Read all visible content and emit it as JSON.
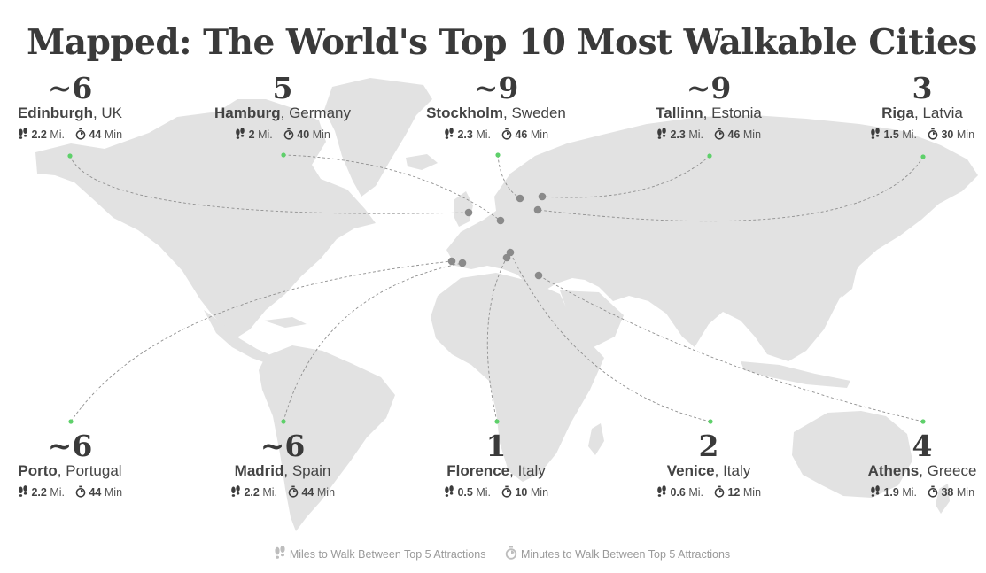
{
  "title": "Mapped: The World's Top 10 Most Walkable Cities",
  "units": {
    "miles": "Mi.",
    "minutes": "Min"
  },
  "colors": {
    "land": "#e2e2e2",
    "dot": "#8a8a8a",
    "marker": "#5ed06a",
    "text": "#3c3c3c",
    "legend": "#9a9a9a"
  },
  "icons": {
    "miles": "footprints-icon",
    "minutes": "stopwatch-icon"
  },
  "cities": [
    {
      "rank": "~6",
      "city": "Edinburgh",
      "country": "UK",
      "miles": "2.2",
      "minutes": "44"
    },
    {
      "rank": "5",
      "city": "Hamburg",
      "country": "Germany",
      "miles": "2",
      "minutes": "40"
    },
    {
      "rank": "~9",
      "city": "Stockholm",
      "country": "Sweden",
      "miles": "2.3",
      "minutes": "46"
    },
    {
      "rank": "~9",
      "city": "Tallinn",
      "country": "Estonia",
      "miles": "2.3",
      "minutes": "46"
    },
    {
      "rank": "3",
      "city": "Riga",
      "country": "Latvia",
      "miles": "1.5",
      "minutes": "30"
    },
    {
      "rank": "~6",
      "city": "Porto",
      "country": "Portugal",
      "miles": "2.2",
      "minutes": "44"
    },
    {
      "rank": "~6",
      "city": "Madrid",
      "country": "Spain",
      "miles": "2.2",
      "minutes": "44"
    },
    {
      "rank": "1",
      "city": "Florence",
      "country": "Italy",
      "miles": "0.5",
      "minutes": "10"
    },
    {
      "rank": "2",
      "city": "Venice",
      "country": "Italy",
      "miles": "0.6",
      "minutes": "12"
    },
    {
      "rank": "4",
      "city": "Athens",
      "country": "Greece",
      "miles": "1.9",
      "minutes": "38"
    }
  ],
  "legend": {
    "miles_label": "Miles to Walk Between Top 5 Attractions",
    "minutes_label": "Minutes to Walk Between Top 5 Attractions"
  }
}
